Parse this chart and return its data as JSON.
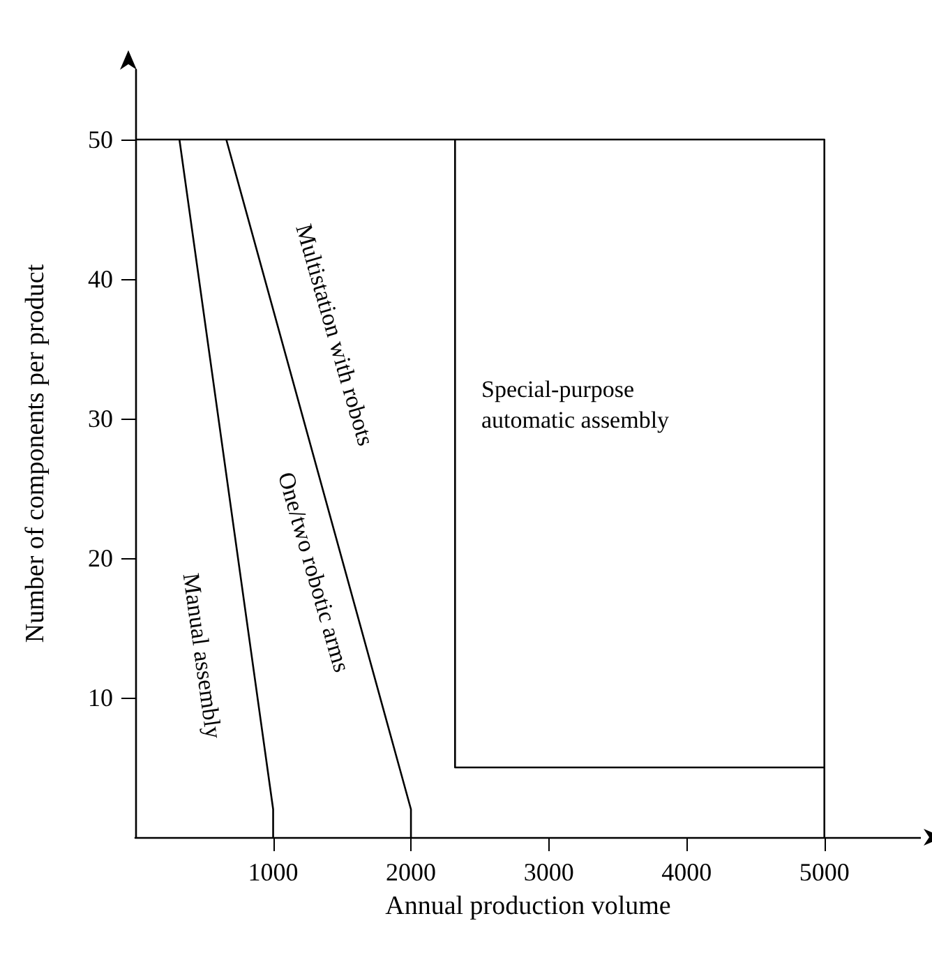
{
  "chart_data": {
    "type": "line",
    "xlabel": "Annual production volume",
    "ylabel": "Number of components per product",
    "xlim": [
      0,
      5700
    ],
    "ylim": [
      0,
      55
    ],
    "xticks": [
      1000,
      2000,
      3000,
      4000,
      5000
    ],
    "yticks": [
      10,
      20,
      30,
      40,
      50
    ],
    "grid": false,
    "marker": "none",
    "line_style": "solid",
    "series": [
      {
        "color": "#000000",
        "x": [
          320,
          1000,
          1000
        ],
        "values": [
          50,
          2,
          0
        ]
      },
      {
        "color": "#000000",
        "x": [
          660,
          2000,
          2000
        ],
        "values": [
          50,
          2,
          0
        ]
      },
      {
        "color": "#000000",
        "x": [
          0,
          5000,
          5000
        ],
        "values": [
          50,
          50,
          0
        ]
      },
      {
        "color": "#000000",
        "x": [
          2320,
          2320,
          5000
        ],
        "values": [
          50,
          5,
          5
        ]
      }
    ],
    "annotations": [
      "Manual assembly",
      "One/two robotic arms",
      "Multistation with robots",
      "Special-purpose\nautomatic assembly"
    ]
  }
}
